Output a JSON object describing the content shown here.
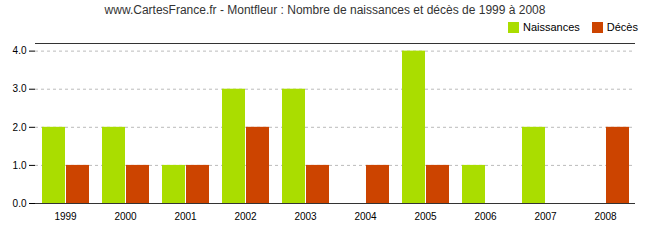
{
  "chart_data": {
    "type": "bar",
    "title": "www.CartesFrance.fr - Montfleur : Nombre de naissances et décès de 1999 à 2008",
    "categories": [
      "1999",
      "2000",
      "2001",
      "2002",
      "2003",
      "2004",
      "2005",
      "2006",
      "2007",
      "2008"
    ],
    "series": [
      {
        "name": "Naissances",
        "color": "#AADD00",
        "values": [
          2,
          2,
          1,
          3,
          3,
          0,
          4,
          1,
          2,
          0
        ]
      },
      {
        "name": "Décès",
        "color": "#CC4400",
        "values": [
          1,
          1,
          1,
          2,
          1,
          1,
          1,
          0,
          0,
          2
        ]
      }
    ],
    "ylim": [
      0,
      4.2
    ],
    "yticks": [
      0,
      1,
      2,
      3,
      4
    ],
    "grid": true,
    "legend": "upper right"
  }
}
